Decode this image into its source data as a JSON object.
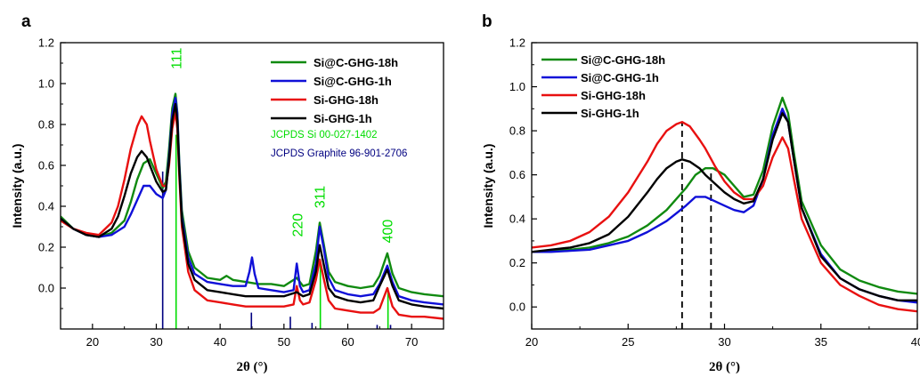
{
  "chart_data": [
    {
      "type": "line",
      "panel_label": "a",
      "xlabel": "2θ (°)",
      "ylabel": "Intensity (a.u.)",
      "xlim": [
        15,
        75
      ],
      "ylim": [
        -0.2,
        1.2
      ],
      "xticks": [
        20,
        30,
        40,
        50,
        60,
        70
      ],
      "yticks": [
        0.0,
        0.2,
        0.4,
        0.6,
        0.8,
        1.0,
        1.2
      ],
      "grid": false,
      "legend": "top-right",
      "series": [
        {
          "name": "Si@C-GHG-18h",
          "color": "#108a10",
          "x": [
            15,
            17,
            19,
            21,
            23,
            25,
            26,
            27,
            28,
            29,
            30,
            31,
            31.5,
            32,
            32.5,
            33,
            33.3,
            33.6,
            34,
            35,
            36,
            38,
            40,
            41,
            42,
            44,
            46,
            48,
            50,
            52,
            53,
            54,
            55,
            55.6,
            56.2,
            57,
            58,
            60,
            62,
            64,
            65,
            66.2,
            67,
            68,
            70,
            72,
            75
          ],
          "y": [
            0.35,
            0.29,
            0.26,
            0.25,
            0.27,
            0.33,
            0.42,
            0.53,
            0.61,
            0.63,
            0.56,
            0.49,
            0.52,
            0.68,
            0.88,
            0.95,
            0.86,
            0.62,
            0.38,
            0.18,
            0.1,
            0.05,
            0.04,
            0.06,
            0.04,
            0.03,
            0.02,
            0.02,
            0.01,
            0.05,
            0.01,
            0.02,
            0.18,
            0.32,
            0.22,
            0.08,
            0.03,
            0.01,
            0.0,
            0.01,
            0.06,
            0.17,
            0.07,
            0.0,
            -0.02,
            -0.03,
            -0.04
          ]
        },
        {
          "name": "Si@C-GHG-1h",
          "color": "#1010d8",
          "x": [
            15,
            17,
            19,
            21,
            23,
            25,
            26,
            27,
            28,
            29,
            30,
            31,
            31.5,
            32,
            32.5,
            33,
            33.3,
            33.6,
            34,
            35,
            36,
            38,
            40,
            42,
            44,
            44.6,
            45,
            45.4,
            46,
            48,
            50,
            51.5,
            52,
            52.5,
            53,
            54,
            55,
            55.6,
            56.2,
            57,
            58,
            60,
            62,
            64,
            65,
            66.2,
            67,
            68,
            70,
            72,
            75
          ],
          "y": [
            0.34,
            0.29,
            0.26,
            0.25,
            0.26,
            0.3,
            0.36,
            0.43,
            0.5,
            0.5,
            0.46,
            0.44,
            0.48,
            0.64,
            0.85,
            0.93,
            0.85,
            0.6,
            0.35,
            0.15,
            0.07,
            0.03,
            0.02,
            0.01,
            0.01,
            0.08,
            0.15,
            0.07,
            0.0,
            -0.01,
            -0.02,
            -0.01,
            0.12,
            0.01,
            -0.02,
            -0.01,
            0.12,
            0.3,
            0.2,
            0.05,
            -0.01,
            -0.03,
            -0.04,
            -0.03,
            0.02,
            0.11,
            0.03,
            -0.04,
            -0.06,
            -0.07,
            -0.08
          ]
        },
        {
          "name": "Si-GHG-18h",
          "color": "#e81010",
          "x": [
            15,
            17,
            19,
            21,
            23,
            24,
            25,
            26,
            27,
            27.7,
            28.5,
            29,
            30,
            31,
            31.5,
            32,
            32.5,
            33,
            33.3,
            33.6,
            34,
            35,
            36,
            38,
            40,
            42,
            44,
            46,
            48,
            50,
            51.5,
            52,
            52.5,
            53,
            54,
            55,
            55.6,
            56.2,
            57,
            58,
            60,
            62,
            64,
            65,
            66.2,
            67,
            68,
            70,
            72,
            75
          ],
          "y": [
            0.33,
            0.29,
            0.27,
            0.26,
            0.32,
            0.4,
            0.53,
            0.68,
            0.79,
            0.84,
            0.8,
            0.72,
            0.58,
            0.5,
            0.5,
            0.6,
            0.78,
            0.86,
            0.78,
            0.55,
            0.3,
            0.08,
            -0.01,
            -0.06,
            -0.07,
            -0.08,
            -0.09,
            -0.09,
            -0.09,
            -0.09,
            -0.08,
            0.01,
            -0.06,
            -0.08,
            -0.07,
            0.04,
            0.14,
            0.05,
            -0.06,
            -0.1,
            -0.11,
            -0.12,
            -0.12,
            -0.1,
            0.0,
            -0.09,
            -0.13,
            -0.14,
            -0.14,
            -0.15
          ]
        },
        {
          "name": "Si-GHG-1h",
          "color": "#000000",
          "x": [
            15,
            17,
            19,
            21,
            23,
            24,
            25,
            26,
            27,
            27.7,
            28.5,
            29,
            30,
            31,
            31.5,
            32,
            32.5,
            33,
            33.3,
            33.6,
            34,
            35,
            36,
            38,
            40,
            42,
            44,
            46,
            48,
            50,
            52,
            53,
            54,
            55,
            55.6,
            56.2,
            57,
            58,
            60,
            62,
            64,
            65,
            66.2,
            67,
            68,
            70,
            72,
            75
          ],
          "y": [
            0.34,
            0.29,
            0.26,
            0.25,
            0.29,
            0.35,
            0.45,
            0.56,
            0.64,
            0.67,
            0.64,
            0.6,
            0.52,
            0.47,
            0.48,
            0.62,
            0.82,
            0.9,
            0.82,
            0.58,
            0.33,
            0.12,
            0.04,
            -0.01,
            -0.02,
            -0.03,
            -0.04,
            -0.04,
            -0.04,
            -0.04,
            -0.02,
            -0.04,
            -0.03,
            0.08,
            0.21,
            0.12,
            0.0,
            -0.04,
            -0.06,
            -0.07,
            -0.06,
            0.01,
            0.09,
            0.01,
            -0.06,
            -0.08,
            -0.09,
            -0.1
          ]
        }
      ],
      "reference_lines": [
        {
          "label": "JCPDS Si 00-027-1402",
          "color": "#00dd00",
          "bars": [
            {
              "x": 33.1,
              "height": 0.95
            },
            {
              "x": 55.7,
              "height": 0.34
            },
            {
              "x": 66.3,
              "height": 0.2
            }
          ]
        },
        {
          "label": "JCPDS Graphite 96-901-2706",
          "color": "#000080",
          "bars": [
            {
              "x": 31.0,
              "height": 0.77
            },
            {
              "x": 44.9,
              "height": 0.08
            },
            {
              "x": 51.0,
              "height": 0.06
            },
            {
              "x": 54.4,
              "height": 0.03
            },
            {
              "x": 64.6,
              "height": 0.02
            },
            {
              "x": 66.7,
              "height": 0.02
            }
          ]
        }
      ],
      "annotations": [
        {
          "text": "111",
          "x": 33.2,
          "y": 1.07,
          "color": "#00dd00"
        },
        {
          "text": "220",
          "x": 52.2,
          "y": 0.25,
          "color": "#00dd00"
        },
        {
          "text": "311",
          "x": 55.7,
          "y": 0.39,
          "color": "#00dd00"
        },
        {
          "text": "400",
          "x": 66.3,
          "y": 0.22,
          "color": "#00dd00"
        }
      ]
    },
    {
      "type": "line",
      "panel_label": "b",
      "xlabel": "2θ (°)",
      "ylabel": "Intensity (a.u.)",
      "xlim": [
        20,
        40
      ],
      "ylim": [
        -0.1,
        1.2
      ],
      "xticks": [
        20,
        25,
        30,
        35,
        40
      ],
      "yticks": [
        0.0,
        0.2,
        0.4,
        0.6,
        0.8,
        1.0,
        1.2
      ],
      "grid": false,
      "legend": "top-left",
      "series": [
        {
          "name": "Si@C-GHG-18h",
          "color": "#108a10",
          "x": [
            20,
            21,
            22,
            23,
            24,
            25,
            26,
            27,
            28,
            28.5,
            29,
            29.4,
            30,
            30.5,
            31,
            31.5,
            32,
            32.5,
            33,
            33.3,
            33.6,
            34,
            35,
            36,
            37,
            38,
            39,
            40
          ],
          "y": [
            0.25,
            0.255,
            0.26,
            0.27,
            0.29,
            0.32,
            0.37,
            0.44,
            0.54,
            0.6,
            0.63,
            0.63,
            0.6,
            0.55,
            0.5,
            0.51,
            0.62,
            0.82,
            0.95,
            0.88,
            0.7,
            0.48,
            0.28,
            0.17,
            0.12,
            0.09,
            0.07,
            0.06
          ]
        },
        {
          "name": "Si@C-GHG-1h",
          "color": "#1010d8",
          "x": [
            20,
            21,
            22,
            23,
            24,
            25,
            26,
            27,
            28,
            28.5,
            29,
            29.5,
            30,
            30.5,
            31,
            31.5,
            32,
            32.5,
            33,
            33.3,
            33.6,
            34,
            35,
            36,
            37,
            38,
            39,
            40
          ],
          "y": [
            0.25,
            0.25,
            0.255,
            0.26,
            0.28,
            0.3,
            0.34,
            0.39,
            0.46,
            0.5,
            0.5,
            0.48,
            0.46,
            0.44,
            0.43,
            0.46,
            0.58,
            0.78,
            0.9,
            0.84,
            0.67,
            0.45,
            0.24,
            0.13,
            0.08,
            0.05,
            0.03,
            0.02
          ]
        },
        {
          "name": "Si-GHG-18h",
          "color": "#e81010",
          "x": [
            20,
            21,
            22,
            23,
            24,
            25,
            26,
            26.5,
            27,
            27.5,
            27.8,
            28.2,
            28.7,
            29,
            29.5,
            30,
            30.5,
            31,
            31.5,
            32,
            32.5,
            33,
            33.3,
            33.6,
            34,
            35,
            36,
            37,
            38,
            39,
            40
          ],
          "y": [
            0.27,
            0.28,
            0.3,
            0.34,
            0.41,
            0.52,
            0.66,
            0.74,
            0.8,
            0.83,
            0.84,
            0.82,
            0.76,
            0.72,
            0.64,
            0.57,
            0.52,
            0.49,
            0.49,
            0.55,
            0.68,
            0.77,
            0.72,
            0.58,
            0.4,
            0.2,
            0.1,
            0.05,
            0.01,
            -0.01,
            -0.02
          ]
        },
        {
          "name": "Si-GHG-1h",
          "color": "#000000",
          "x": [
            20,
            21,
            22,
            23,
            24,
            25,
            26,
            26.5,
            27,
            27.5,
            27.8,
            28.2,
            28.7,
            29,
            29.5,
            30,
            30.5,
            31,
            31.5,
            32,
            32.5,
            33,
            33.3,
            33.6,
            34,
            35,
            36,
            37,
            38,
            39,
            40
          ],
          "y": [
            0.25,
            0.26,
            0.27,
            0.29,
            0.33,
            0.41,
            0.52,
            0.58,
            0.63,
            0.66,
            0.67,
            0.66,
            0.63,
            0.6,
            0.56,
            0.52,
            0.49,
            0.47,
            0.48,
            0.58,
            0.76,
            0.88,
            0.84,
            0.67,
            0.45,
            0.23,
            0.13,
            0.08,
            0.05,
            0.03,
            0.03
          ]
        }
      ],
      "reference_lines": [
        {
          "style": "dashed",
          "color": "#000000",
          "x": 27.8,
          "y_top": 0.84
        },
        {
          "style": "dashed",
          "color": "#000000",
          "x": 29.3,
          "y_top": 0.63
        }
      ]
    }
  ]
}
